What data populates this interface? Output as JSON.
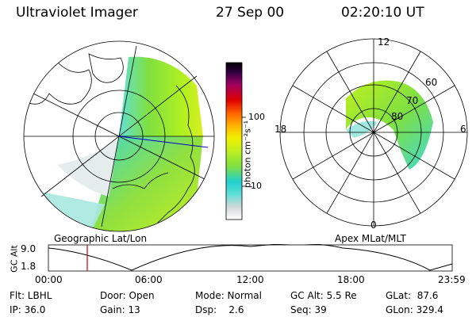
{
  "header": {
    "instrument": "Ultraviolet Imager",
    "date": "27 Sep 00",
    "time": "02:20:10 UT"
  },
  "left_panel": {
    "caption": "Geographic Lat/Lon"
  },
  "right_panel": {
    "caption": "Apex MLat/MLT",
    "mlt_labels": [
      "12",
      "18",
      "6",
      "0"
    ],
    "lat_labels": [
      "60",
      "70",
      "80"
    ]
  },
  "colorbar": {
    "unit_label": "photon cm⁻²s⁻¹",
    "ticks": [
      "100",
      "10"
    ],
    "colors": [
      "#ffffff",
      "#d0d8d8",
      "#60e0d8",
      "#20d0d0",
      "#80e040",
      "#c0f020",
      "#f0f000",
      "#ffb000",
      "#ff6000",
      "#e00000",
      "#a00060",
      "#300040",
      "#000000"
    ]
  },
  "timeline": {
    "ylabel": "GC Alt",
    "y_ticks": [
      "9.0",
      "1.8"
    ],
    "x_ticks": [
      "00:00",
      "06:00",
      "12:00",
      "18:00",
      "23:59"
    ],
    "marker_color": "#cc0000"
  },
  "footer": {
    "row1": [
      {
        "label": "Flt: LBHL"
      },
      {
        "label": "Door: Open"
      },
      {
        "label": "Mode: Normal"
      },
      {
        "label": "GC Alt: 5.5 Re"
      },
      {
        "label": "GLat:  87.6"
      }
    ],
    "row2": [
      {
        "label": "IP: 36.0"
      },
      {
        "label": "Gain: 13"
      },
      {
        "label": "Dsp:    2.6"
      },
      {
        "label": "Seq: 39"
      },
      {
        "label": "GLon: 329.4"
      }
    ]
  }
}
